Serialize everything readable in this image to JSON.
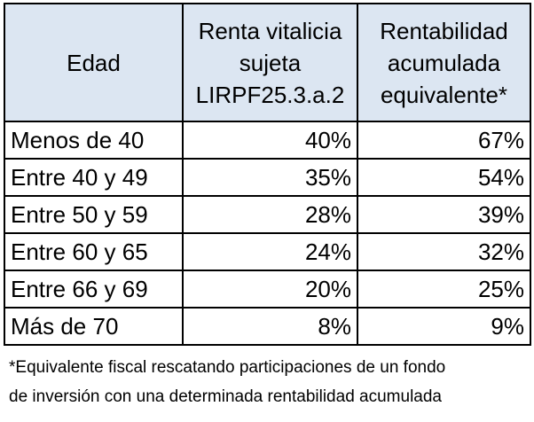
{
  "table": {
    "headers": [
      "Edad",
      "Renta vitalicia sujeta LIRPF25.3.a.2",
      "Rentabilidad acumulada equivalente*"
    ],
    "rows": [
      {
        "edad": "Menos de 40",
        "renta": "40%",
        "rentabilidad": "67%"
      },
      {
        "edad": "Entre 40 y 49",
        "renta": "35%",
        "rentabilidad": "54%"
      },
      {
        "edad": "Entre 50 y 59",
        "renta": "28%",
        "rentabilidad": "39%"
      },
      {
        "edad": "Entre 60 y 65",
        "renta": "24%",
        "rentabilidad": "32%"
      },
      {
        "edad": "Entre 66 y 69",
        "renta": "20%",
        "rentabilidad": "25%"
      },
      {
        "edad": "Más de 70",
        "renta": "8%",
        "rentabilidad": "9%"
      }
    ]
  },
  "footnote": {
    "line1": "*Equivalente fiscal rescatando participaciones de un fondo",
    "line2": "de inversión con una determinada rentabilidad acumulada"
  },
  "colors": {
    "header_background": "#dce6f2",
    "border": "#000000",
    "text": "#000000"
  }
}
